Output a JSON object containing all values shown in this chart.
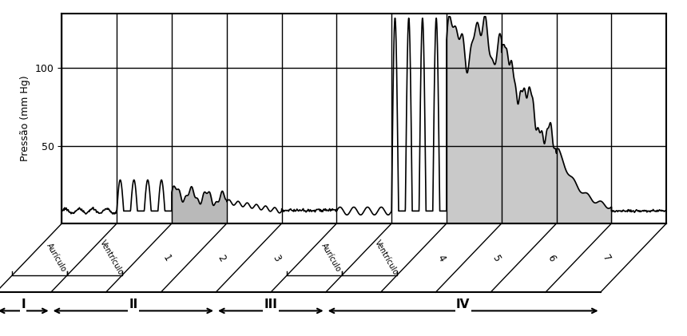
{
  "ylabel": "Pressão (mm Hg)",
  "yticks": [
    50,
    100
  ],
  "ylim": [
    0,
    135
  ],
  "n_cols": 11,
  "bgcolor": "white",
  "line_color": "black",
  "shade_color": "#c0c0c0",
  "columns": [
    "Aurículo",
    "Ventrículo",
    "1",
    "2",
    "3",
    "Aurículo",
    "Ventrículo",
    "4",
    "5",
    "6",
    "7"
  ],
  "roman_data": [
    [
      0,
      1,
      "I"
    ],
    [
      1,
      4,
      "II"
    ],
    [
      4,
      6,
      "III"
    ],
    [
      6,
      11,
      "IV"
    ]
  ]
}
